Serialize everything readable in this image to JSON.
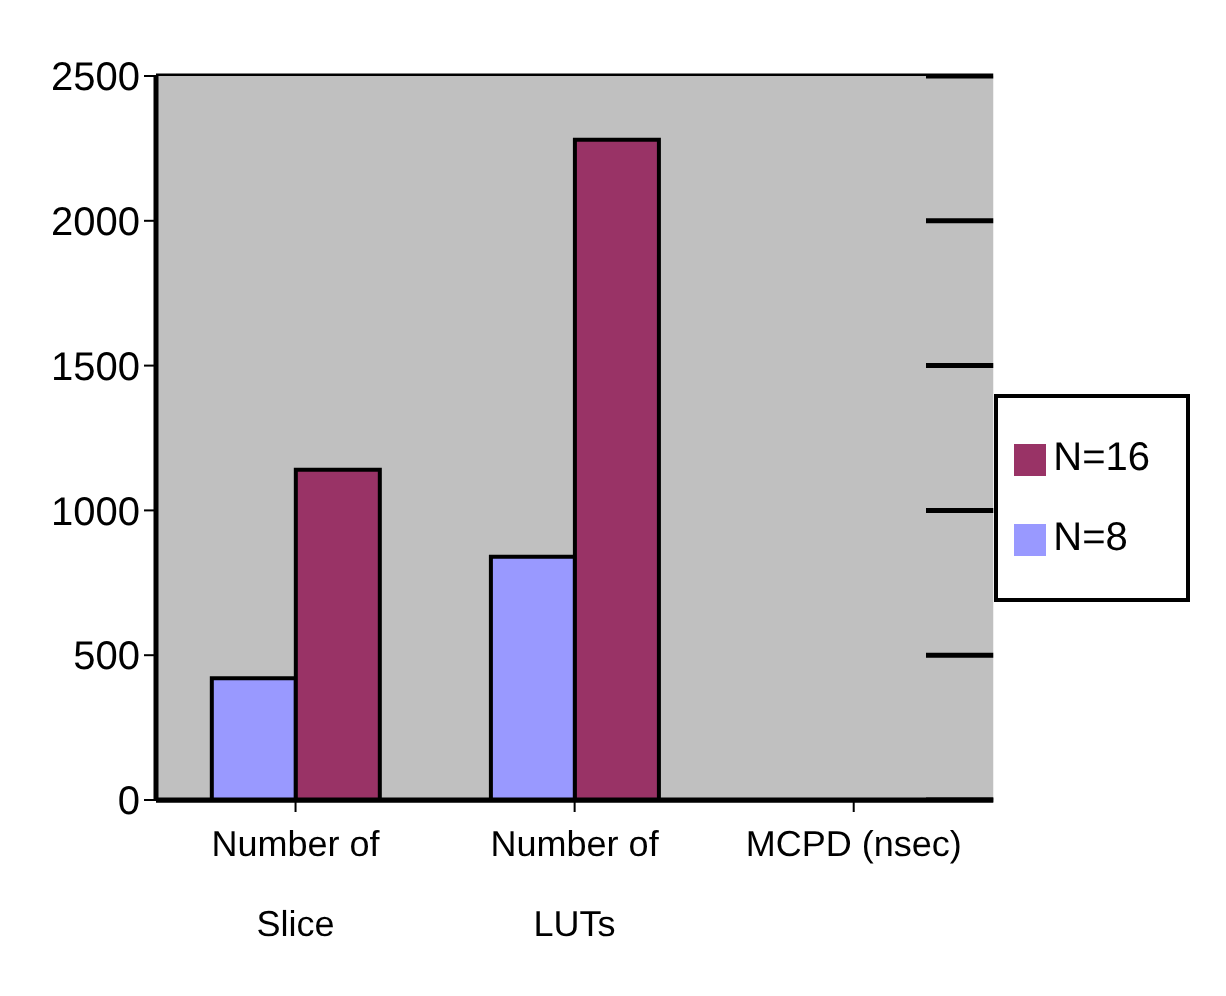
{
  "chart_data": {
    "type": "bar",
    "categories": [
      "Number of Slice",
      "Number of LUTs",
      "MCPD (nsec)"
    ],
    "series": [
      {
        "name": "N=8",
        "color": "#9999ff",
        "values": [
          420,
          840,
          null
        ]
      },
      {
        "name": "N=16",
        "color": "#993366",
        "values": [
          1140,
          2280,
          null
        ]
      }
    ],
    "ylim": [
      0,
      2500
    ],
    "yticks": [
      0,
      500,
      1000,
      1500,
      2000,
      2500
    ],
    "grid": "y",
    "legend": "right"
  }
}
